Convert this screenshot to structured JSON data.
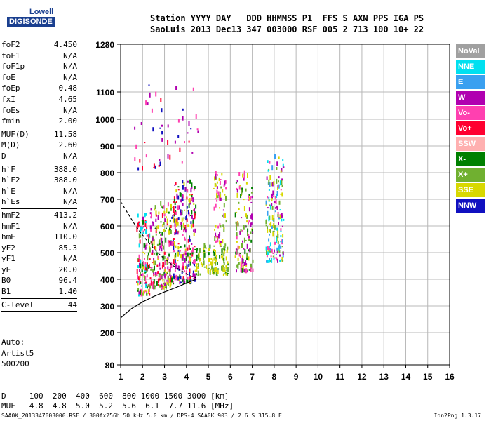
{
  "logo": {
    "top": "Lowell",
    "bottom": "DIGISONDE"
  },
  "header": {
    "line1": "Station YYYY DAY   DDD HHMMSS P1  FFS S AXN PPS IGA PS",
    "line2": "SaoLuis 2013 Dec13 347 003000 RSF 005 2 713 100 10+ 22"
  },
  "parameters": [
    {
      "label": "foF2",
      "value": "4.450"
    },
    {
      "label": "foF1",
      "value": "N/A"
    },
    {
      "label": "foF1p",
      "value": "N/A"
    },
    {
      "label": "foE",
      "value": "N/A"
    },
    {
      "label": "foEp",
      "value": "0.48"
    },
    {
      "label": "fxI",
      "value": "4.65"
    },
    {
      "label": "foEs",
      "value": "N/A"
    },
    {
      "label": "fmin",
      "value": "2.00"
    },
    {
      "sep": true
    },
    {
      "label": "MUF(D)",
      "value": "11.58"
    },
    {
      "label": "M(D)",
      "value": "2.60"
    },
    {
      "label": "D",
      "value": "N/A"
    },
    {
      "sep": true
    },
    {
      "label": "h`F",
      "value": "388.0"
    },
    {
      "label": "h`F2",
      "value": "388.0"
    },
    {
      "label": "h`E",
      "value": "N/A"
    },
    {
      "label": "h`Es",
      "value": "N/A"
    },
    {
      "sep": true
    },
    {
      "label": "hmF2",
      "value": "413.2"
    },
    {
      "label": "hmF1",
      "value": "N/A"
    },
    {
      "label": "hmE",
      "value": "110.0"
    },
    {
      "label": "yF2",
      "value": "85.3"
    },
    {
      "label": "yF1",
      "value": "N/A"
    },
    {
      "label": "yE",
      "value": "20.0"
    },
    {
      "label": "B0",
      "value": "96.4"
    },
    {
      "label": "B1",
      "value": "1.40"
    },
    {
      "sep": true
    },
    {
      "label": "C-level",
      "value": "44"
    },
    {
      "sep": true
    }
  ],
  "auto": {
    "line1": "Auto:",
    "line2": "Artist5",
    "line3": "500200"
  },
  "legend": [
    {
      "label": "NoVal",
      "color": "#a0a0a0"
    },
    {
      "label": "NNE",
      "color": "#00e0f0"
    },
    {
      "label": "E",
      "color": "#3aa0f0"
    },
    {
      "label": "W",
      "color": "#b000b0"
    },
    {
      "label": "Vo-",
      "color": "#ff40b0"
    },
    {
      "label": "Vo+",
      "color": "#ff0030"
    },
    {
      "label": "SSW",
      "color": "#ffb0b0"
    },
    {
      "label": "X-",
      "color": "#008000"
    },
    {
      "label": "X+",
      "color": "#70b030"
    },
    {
      "label": "SSE",
      "color": "#d8d800"
    },
    {
      "label": "NNW",
      "color": "#1010c0"
    }
  ],
  "muf_table": {
    "line1": "D     100  200  400  600  800 1000 1500 3000 [km]",
    "line2": "MUF   4.8  4.8  5.0  5.2  5.6  6.1  7.7 11.6 [MHz]"
  },
  "footer": {
    "left": "SAA0K_2013347003000.RSF / 300fx256h 50 kHz 5.0 km / DPS-4 SAA0K 903 / 2.6 S 315.8 E",
    "right": "Ion2Png 1.3.17"
  },
  "chart_data": {
    "type": "scatter",
    "x_ticks": [
      1,
      2,
      3,
      4,
      5,
      6,
      7,
      8,
      9,
      10,
      11,
      12,
      13,
      14,
      15,
      16
    ],
    "y_ticks": [
      80,
      200,
      300,
      400,
      500,
      600,
      700,
      800,
      900,
      1000,
      1100,
      1280
    ],
    "xlim": [
      1,
      16
    ],
    "ylim": [
      80,
      1280
    ],
    "grid": true,
    "legend_position": "right",
    "profile_curve": {
      "x": [
        1.0,
        1.5,
        2.0,
        2.5,
        3.0,
        3.5,
        4.0,
        4.3,
        4.45
      ],
      "y": [
        255,
        290,
        315,
        335,
        352,
        368,
        385,
        395,
        400
      ]
    },
    "trace_curve": {
      "x": [
        1.0,
        1.3,
        1.6,
        1.9,
        2.2,
        2.5,
        2.8,
        3.1,
        3.4,
        3.7,
        4.0,
        4.25,
        4.45
      ],
      "y": [
        690,
        650,
        610,
        575,
        545,
        515,
        490,
        470,
        450,
        435,
        420,
        410,
        405
      ]
    },
    "echo_clusters": [
      {
        "x": [
          1.7,
          2.3
        ],
        "y": [
          335,
          640
        ],
        "colors": [
          "#008000",
          "#b000b0",
          "#ff0030",
          "#d8d800",
          "#ff40b0",
          "#00e0f0",
          "#70b030"
        ],
        "count": 120
      },
      {
        "x": [
          2.3,
          3.3
        ],
        "y": [
          360,
          680
        ],
        "colors": [
          "#b000b0",
          "#ff40b0",
          "#ff0030",
          "#d8d800",
          "#008000",
          "#70b030"
        ],
        "count": 220
      },
      {
        "x": [
          3.3,
          4.4
        ],
        "y": [
          380,
          760
        ],
        "colors": [
          "#b000b0",
          "#ff40b0",
          "#ff0030",
          "#d8d800",
          "#008000",
          "#1010c0"
        ],
        "count": 260
      },
      {
        "x": [
          4.4,
          5.9
        ],
        "y": [
          410,
          520
        ],
        "colors": [
          "#d8d800",
          "#d8d800",
          "#70b030",
          "#008000"
        ],
        "count": 120
      },
      {
        "x": [
          5.2,
          5.8
        ],
        "y": [
          520,
          790
        ],
        "colors": [
          "#d8d800",
          "#b000b0",
          "#ff40b0",
          "#70b030"
        ],
        "count": 70
      },
      {
        "x": [
          6.2,
          7.0
        ],
        "y": [
          420,
          790
        ],
        "colors": [
          "#d8d800",
          "#70b030",
          "#b000b0",
          "#008000",
          "#ff40b0"
        ],
        "count": 130
      },
      {
        "x": [
          7.6,
          8.4
        ],
        "y": [
          460,
          850
        ],
        "colors": [
          "#d8d800",
          "#00e0f0",
          "#3aa0f0",
          "#ff40b0",
          "#b000b0",
          "#70b030"
        ],
        "count": 170
      },
      {
        "x": [
          1.5,
          4.6
        ],
        "y": [
          800,
          1130
        ],
        "colors": [
          "#b000b0",
          "#ff40b0",
          "#ff0030",
          "#1010c0"
        ],
        "count": 50
      }
    ]
  }
}
